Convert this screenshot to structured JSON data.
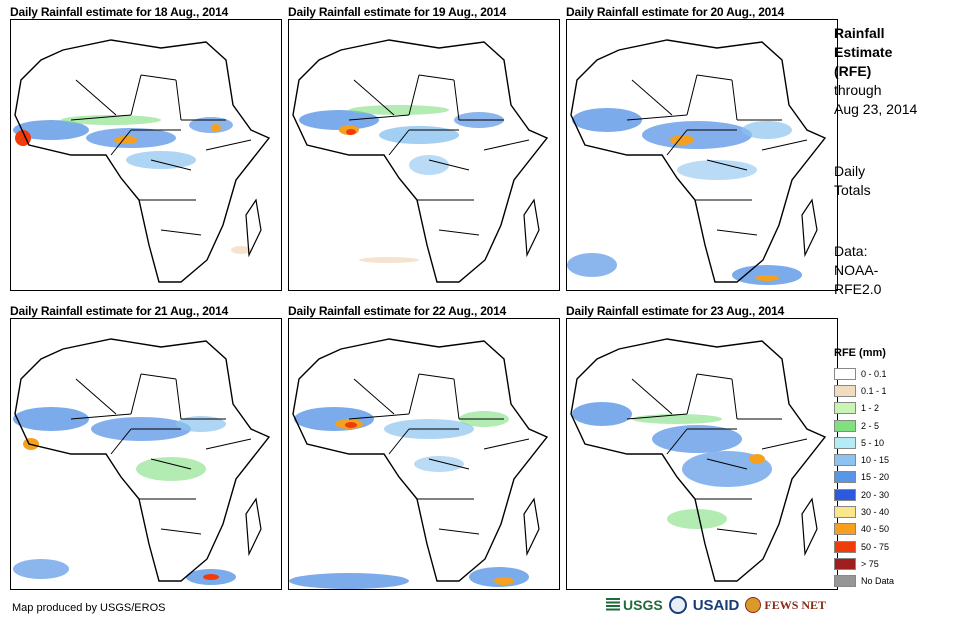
{
  "panels": [
    {
      "title": "Daily Rainfall estimate for 18 Aug., 2014"
    },
    {
      "title": "Daily Rainfall estimate for 19 Aug., 2014"
    },
    {
      "title": "Daily Rainfall estimate for 20 Aug., 2014"
    },
    {
      "title": "Daily Rainfall estimate for 21 Aug., 2014"
    },
    {
      "title": "Daily Rainfall estimate for 22 Aug., 2014"
    },
    {
      "title": "Daily Rainfall estimate for 23 Aug., 2014"
    }
  ],
  "side": {
    "title_line1": "Rainfall",
    "title_line2": "Estimate",
    "title_line3": "(RFE)",
    "through_line1": "through",
    "through_line2": "Aug 23, 2014",
    "daily_line1": "Daily",
    "daily_line2": "Totals",
    "data_line1": "Data:",
    "data_line2": "NOAA-",
    "data_line3": "RFE2.0"
  },
  "legend": {
    "title": "RFE (mm)",
    "items": [
      {
        "label": "0 - 0.1",
        "color": "#ffffff"
      },
      {
        "label": "0.1 - 1",
        "color": "#f2dcc0"
      },
      {
        "label": "1 - 2",
        "color": "#c8f5b4"
      },
      {
        "label": "2 - 5",
        "color": "#7ee07e"
      },
      {
        "label": "5 - 10",
        "color": "#b4ecf5"
      },
      {
        "label": "10 - 15",
        "color": "#8cc3f0"
      },
      {
        "label": "15 - 20",
        "color": "#5a96e6"
      },
      {
        "label": "20 - 30",
        "color": "#2d5adc"
      },
      {
        "label": "30 - 40",
        "color": "#fae68c"
      },
      {
        "label": "40 - 50",
        "color": "#f5a01e"
      },
      {
        "label": "50 - 75",
        "color": "#f03c0a"
      },
      {
        "label": "> 75",
        "color": "#a01e1e"
      },
      {
        "label": "No Data",
        "color": "#969696"
      }
    ]
  },
  "credit": "Map produced by USGS/EROS",
  "logos": {
    "usgs": "USGS",
    "usaid": "USAID",
    "fews": "FEWS NET"
  }
}
